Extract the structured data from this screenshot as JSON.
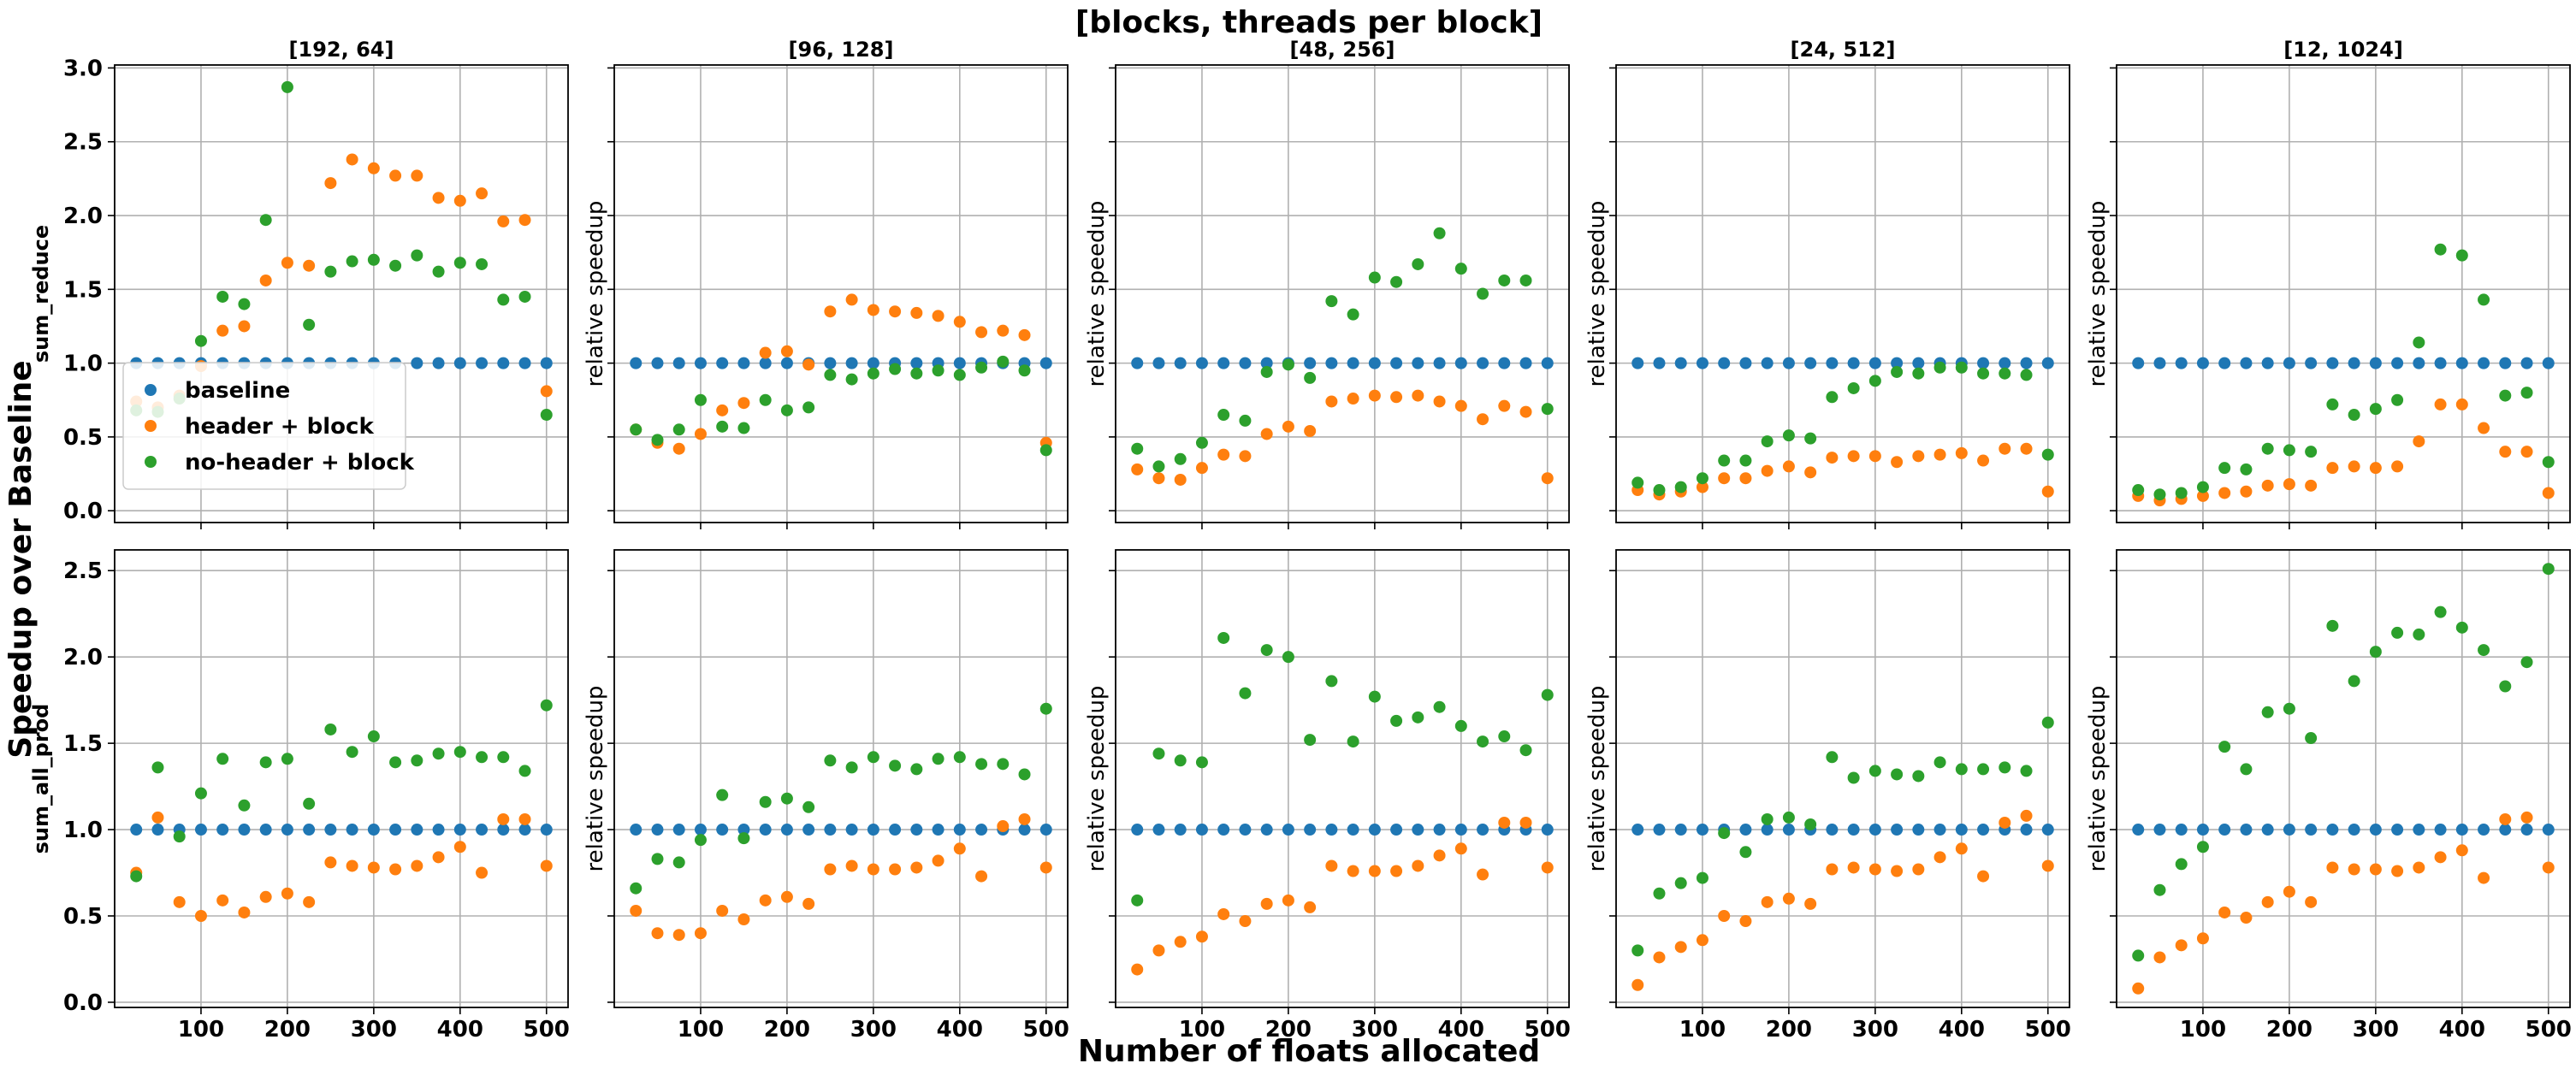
{
  "figure": {
    "suptitle": "[blocks, threads per block]",
    "supxlabel": "Number of floats allocated",
    "supylabel": "Speedup over Baseline",
    "subplot_ylabel": "relative speedup"
  },
  "colors": {
    "baseline": "#1f77b4",
    "header_block": "#ff7f0e",
    "noheader_block": "#2ca02c",
    "grid": "#b0b0b0"
  },
  "chart_data": {
    "type": "scatter",
    "columns": [
      "[192, 64]",
      "[96, 128]",
      "[48, 256]",
      "[24, 512]",
      "[12, 1024]"
    ],
    "rows": [
      "sum_reduce",
      "sum_all_prod"
    ],
    "x": [
      25,
      50,
      75,
      100,
      125,
      150,
      175,
      200,
      225,
      250,
      275,
      300,
      325,
      350,
      375,
      400,
      425,
      450,
      475,
      500
    ],
    "xticks": [
      100,
      200,
      300,
      400,
      500
    ],
    "xlim": [
      0,
      525
    ],
    "ylim_by_row": [
      [
        -0.08,
        3.02
      ],
      [
        -0.03,
        2.62
      ]
    ],
    "yticks_by_row": [
      [
        "0.0",
        "0.5",
        "1.0",
        "1.5",
        "2.0",
        "2.5",
        "3.0"
      ],
      [
        "0.0",
        "0.5",
        "1.0",
        "1.5",
        "2.0",
        "2.5"
      ]
    ],
    "legend": {
      "placement": "lower-left",
      "entries": [
        "baseline",
        "header + block",
        "no-header + block"
      ]
    },
    "grid": true,
    "panels": [
      [
        {
          "series": [
            {
              "name": "baseline",
              "values": [
                1,
                1,
                1,
                1,
                1,
                1,
                1,
                1,
                1,
                1,
                1,
                1,
                1,
                1,
                1,
                1,
                1,
                1,
                1,
                1
              ]
            },
            {
              "name": "header + block",
              "values": [
                0.74,
                0.7,
                0.78,
                0.98,
                1.22,
                1.25,
                1.56,
                1.68,
                1.66,
                2.22,
                2.38,
                2.32,
                2.27,
                2.27,
                2.12,
                2.1,
                2.15,
                1.96,
                1.97,
                0.81
              ]
            },
            {
              "name": "no-header + block",
              "values": [
                0.68,
                0.67,
                0.76,
                1.15,
                1.45,
                1.4,
                1.97,
                2.87,
                1.26,
                1.62,
                1.69,
                1.7,
                1.66,
                1.73,
                1.62,
                1.68,
                1.67,
                1.43,
                1.45,
                0.65
              ]
            }
          ]
        },
        {
          "series": [
            {
              "name": "baseline",
              "values": [
                1,
                1,
                1,
                1,
                1,
                1,
                1,
                1,
                1,
                1,
                1,
                1,
                1,
                1,
                1,
                1,
                1,
                1,
                1,
                1
              ]
            },
            {
              "name": "header + block",
              "values": [
                0.55,
                0.46,
                0.42,
                0.52,
                0.68,
                0.73,
                1.07,
                1.08,
                0.99,
                1.35,
                1.43,
                1.36,
                1.35,
                1.34,
                1.32,
                1.28,
                1.21,
                1.22,
                1.19,
                0.46
              ]
            },
            {
              "name": "no-header + block",
              "values": [
                0.55,
                0.48,
                0.55,
                0.75,
                0.57,
                0.56,
                0.75,
                0.68,
                0.7,
                0.92,
                0.89,
                0.93,
                0.96,
                0.93,
                0.95,
                0.92,
                0.97,
                1.01,
                0.95,
                0.41
              ]
            }
          ]
        },
        {
          "series": [
            {
              "name": "baseline",
              "values": [
                1,
                1,
                1,
                1,
                1,
                1,
                1,
                1,
                1,
                1,
                1,
                1,
                1,
                1,
                1,
                1,
                1,
                1,
                1,
                1
              ]
            },
            {
              "name": "header + block",
              "values": [
                0.28,
                0.22,
                0.21,
                0.29,
                0.38,
                0.37,
                0.52,
                0.57,
                0.54,
                0.74,
                0.76,
                0.78,
                0.77,
                0.78,
                0.74,
                0.71,
                0.62,
                0.71,
                0.67,
                0.22
              ]
            },
            {
              "name": "no-header + block",
              "values": [
                0.42,
                0.3,
                0.35,
                0.46,
                0.65,
                0.61,
                0.94,
                0.99,
                0.9,
                1.42,
                1.33,
                1.58,
                1.55,
                1.67,
                1.88,
                1.64,
                1.47,
                1.56,
                1.56,
                0.69
              ]
            }
          ]
        },
        {
          "series": [
            {
              "name": "baseline",
              "values": [
                1,
                1,
                1,
                1,
                1,
                1,
                1,
                1,
                1,
                1,
                1,
                1,
                1,
                1,
                1,
                1,
                1,
                1,
                1,
                1
              ]
            },
            {
              "name": "header + block",
              "values": [
                0.14,
                0.11,
                0.13,
                0.16,
                0.22,
                0.22,
                0.27,
                0.3,
                0.26,
                0.36,
                0.37,
                0.37,
                0.33,
                0.37,
                0.38,
                0.39,
                0.34,
                0.42,
                0.42,
                0.13
              ]
            },
            {
              "name": "no-header + block",
              "values": [
                0.19,
                0.14,
                0.16,
                0.22,
                0.34,
                0.34,
                0.47,
                0.51,
                0.49,
                0.77,
                0.83,
                0.88,
                0.94,
                0.93,
                0.97,
                0.97,
                0.93,
                0.93,
                0.92,
                0.38
              ]
            }
          ]
        },
        {
          "series": [
            {
              "name": "baseline",
              "values": [
                1,
                1,
                1,
                1,
                1,
                1,
                1,
                1,
                1,
                1,
                1,
                1,
                1,
                1,
                1,
                1,
                1,
                1,
                1,
                1
              ]
            },
            {
              "name": "header + block",
              "values": [
                0.1,
                0.07,
                0.08,
                0.1,
                0.12,
                0.13,
                0.17,
                0.18,
                0.17,
                0.29,
                0.3,
                0.29,
                0.3,
                0.47,
                0.72,
                0.72,
                0.56,
                0.4,
                0.4,
                0.12
              ]
            },
            {
              "name": "no-header + block",
              "values": [
                0.14,
                0.11,
                0.12,
                0.16,
                0.29,
                0.28,
                0.42,
                0.41,
                0.4,
                0.72,
                0.65,
                0.69,
                0.75,
                1.14,
                1.77,
                1.73,
                1.43,
                0.78,
                0.8,
                0.33
              ]
            }
          ]
        }
      ],
      [
        {
          "series": [
            {
              "name": "baseline",
              "values": [
                1,
                1,
                1,
                1,
                1,
                1,
                1,
                1,
                1,
                1,
                1,
                1,
                1,
                1,
                1,
                1,
                1,
                1,
                1,
                1
              ]
            },
            {
              "name": "header + block",
              "values": [
                0.75,
                1.07,
                0.58,
                0.5,
                0.59,
                0.52,
                0.61,
                0.63,
                0.58,
                0.81,
                0.79,
                0.78,
                0.77,
                0.79,
                0.84,
                0.9,
                0.75,
                1.06,
                1.06,
                0.79
              ]
            },
            {
              "name": "no-header + block",
              "values": [
                0.73,
                1.36,
                0.96,
                1.21,
                1.41,
                1.14,
                1.39,
                1.41,
                1.15,
                1.58,
                1.45,
                1.54,
                1.39,
                1.4,
                1.44,
                1.45,
                1.42,
                1.42,
                1.34,
                1.72
              ]
            }
          ]
        },
        {
          "series": [
            {
              "name": "baseline",
              "values": [
                1,
                1,
                1,
                1,
                1,
                1,
                1,
                1,
                1,
                1,
                1,
                1,
                1,
                1,
                1,
                1,
                1,
                1,
                1,
                1
              ]
            },
            {
              "name": "header + block",
              "values": [
                0.53,
                0.4,
                0.39,
                0.4,
                0.53,
                0.48,
                0.59,
                0.61,
                0.57,
                0.77,
                0.79,
                0.77,
                0.77,
                0.78,
                0.82,
                0.89,
                0.73,
                1.02,
                1.06,
                0.78
              ]
            },
            {
              "name": "no-header + block",
              "values": [
                0.66,
                0.83,
                0.81,
                0.94,
                1.2,
                0.95,
                1.16,
                1.18,
                1.13,
                1.4,
                1.36,
                1.42,
                1.37,
                1.35,
                1.41,
                1.42,
                1.38,
                1.38,
                1.32,
                1.7
              ]
            }
          ]
        },
        {
          "series": [
            {
              "name": "baseline",
              "values": [
                1,
                1,
                1,
                1,
                1,
                1,
                1,
                1,
                1,
                1,
                1,
                1,
                1,
                1,
                1,
                1,
                1,
                1,
                1,
                1
              ]
            },
            {
              "name": "header + block",
              "values": [
                0.19,
                0.3,
                0.35,
                0.38,
                0.51,
                0.47,
                0.57,
                0.59,
                0.55,
                0.79,
                0.76,
                0.76,
                0.76,
                0.79,
                0.85,
                0.89,
                0.74,
                1.04,
                1.04,
                0.78
              ]
            },
            {
              "name": "no-header + block",
              "values": [
                0.59,
                1.44,
                1.4,
                1.39,
                2.11,
                1.79,
                2.04,
                2.0,
                1.52,
                1.86,
                1.51,
                1.77,
                1.63,
                1.65,
                1.71,
                1.6,
                1.51,
                1.54,
                1.46,
                1.78
              ]
            }
          ]
        },
        {
          "series": [
            {
              "name": "baseline",
              "values": [
                1,
                1,
                1,
                1,
                1,
                1,
                1,
                1,
                1,
                1,
                1,
                1,
                1,
                1,
                1,
                1,
                1,
                1,
                1,
                1
              ]
            },
            {
              "name": "header + block",
              "values": [
                0.1,
                0.26,
                0.32,
                0.36,
                0.5,
                0.47,
                0.58,
                0.6,
                0.57,
                0.77,
                0.78,
                0.77,
                0.76,
                0.77,
                0.84,
                0.89,
                0.73,
                1.04,
                1.08,
                0.79
              ]
            },
            {
              "name": "no-header + block",
              "values": [
                0.3,
                0.63,
                0.69,
                0.72,
                0.98,
                0.87,
                1.06,
                1.07,
                1.03,
                1.42,
                1.3,
                1.34,
                1.32,
                1.31,
                1.39,
                1.35,
                1.35,
                1.36,
                1.34,
                1.62
              ]
            }
          ]
        },
        {
          "series": [
            {
              "name": "baseline",
              "values": [
                1,
                1,
                1,
                1,
                1,
                1,
                1,
                1,
                1,
                1,
                1,
                1,
                1,
                1,
                1,
                1,
                1,
                1,
                1,
                1
              ]
            },
            {
              "name": "header + block",
              "values": [
                0.08,
                0.26,
                0.33,
                0.37,
                0.52,
                0.49,
                0.58,
                0.64,
                0.58,
                0.78,
                0.77,
                0.77,
                0.76,
                0.78,
                0.84,
                0.88,
                0.72,
                1.06,
                1.07,
                0.78
              ]
            },
            {
              "name": "no-header + block",
              "values": [
                0.27,
                0.65,
                0.8,
                0.9,
                1.48,
                1.35,
                1.68,
                1.7,
                1.53,
                2.18,
                1.86,
                2.03,
                2.14,
                2.13,
                2.26,
                2.17,
                2.04,
                1.83,
                1.97,
                2.51
              ]
            }
          ]
        }
      ]
    ]
  }
}
